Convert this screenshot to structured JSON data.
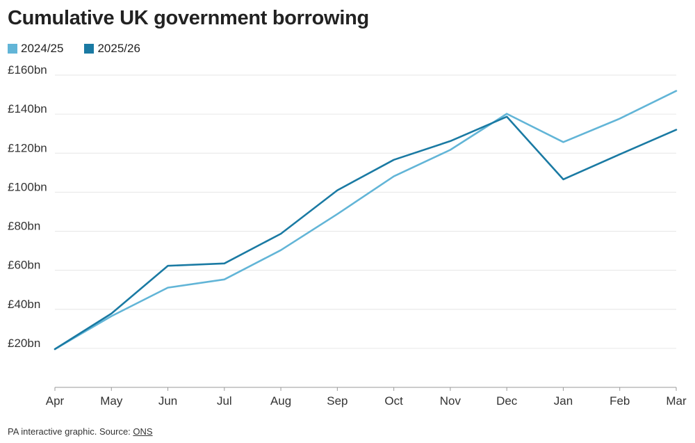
{
  "chart_data": {
    "type": "line",
    "title": "Cumulative UK government borrowing",
    "x": [
      "Apr",
      "May",
      "Jun",
      "Jul",
      "Aug",
      "Sep",
      "Oct",
      "Nov",
      "Dec",
      "Jan",
      "Feb",
      "Mar"
    ],
    "series": [
      {
        "name": "2024/25",
        "color": "#62b5d7",
        "values": [
          19.6,
          36.5,
          51.1,
          55.3,
          70.3,
          88.8,
          108.1,
          121.7,
          140.2,
          125.7,
          137.7,
          151.9
        ]
      },
      {
        "name": "2025/26",
        "color": "#1a7aa3",
        "values": [
          19.6,
          37.8,
          62.3,
          63.5,
          78.7,
          101.0,
          116.6,
          126.2,
          138.7,
          106.6,
          119.4,
          132.0
        ]
      }
    ],
    "y_ticks": [
      20,
      40,
      60,
      80,
      100,
      120,
      140,
      160
    ],
    "y_tick_labels": [
      "£20bn",
      "£40bn",
      "£60bn",
      "£80bn",
      "£100bn",
      "£120bn",
      "£140bn",
      "£160bn"
    ],
    "ylim": [
      0,
      160
    ],
    "grid": true,
    "legend_position": "top-left"
  },
  "footer": {
    "text": "PA interactive graphic. Source: ",
    "source_link": "ONS"
  }
}
